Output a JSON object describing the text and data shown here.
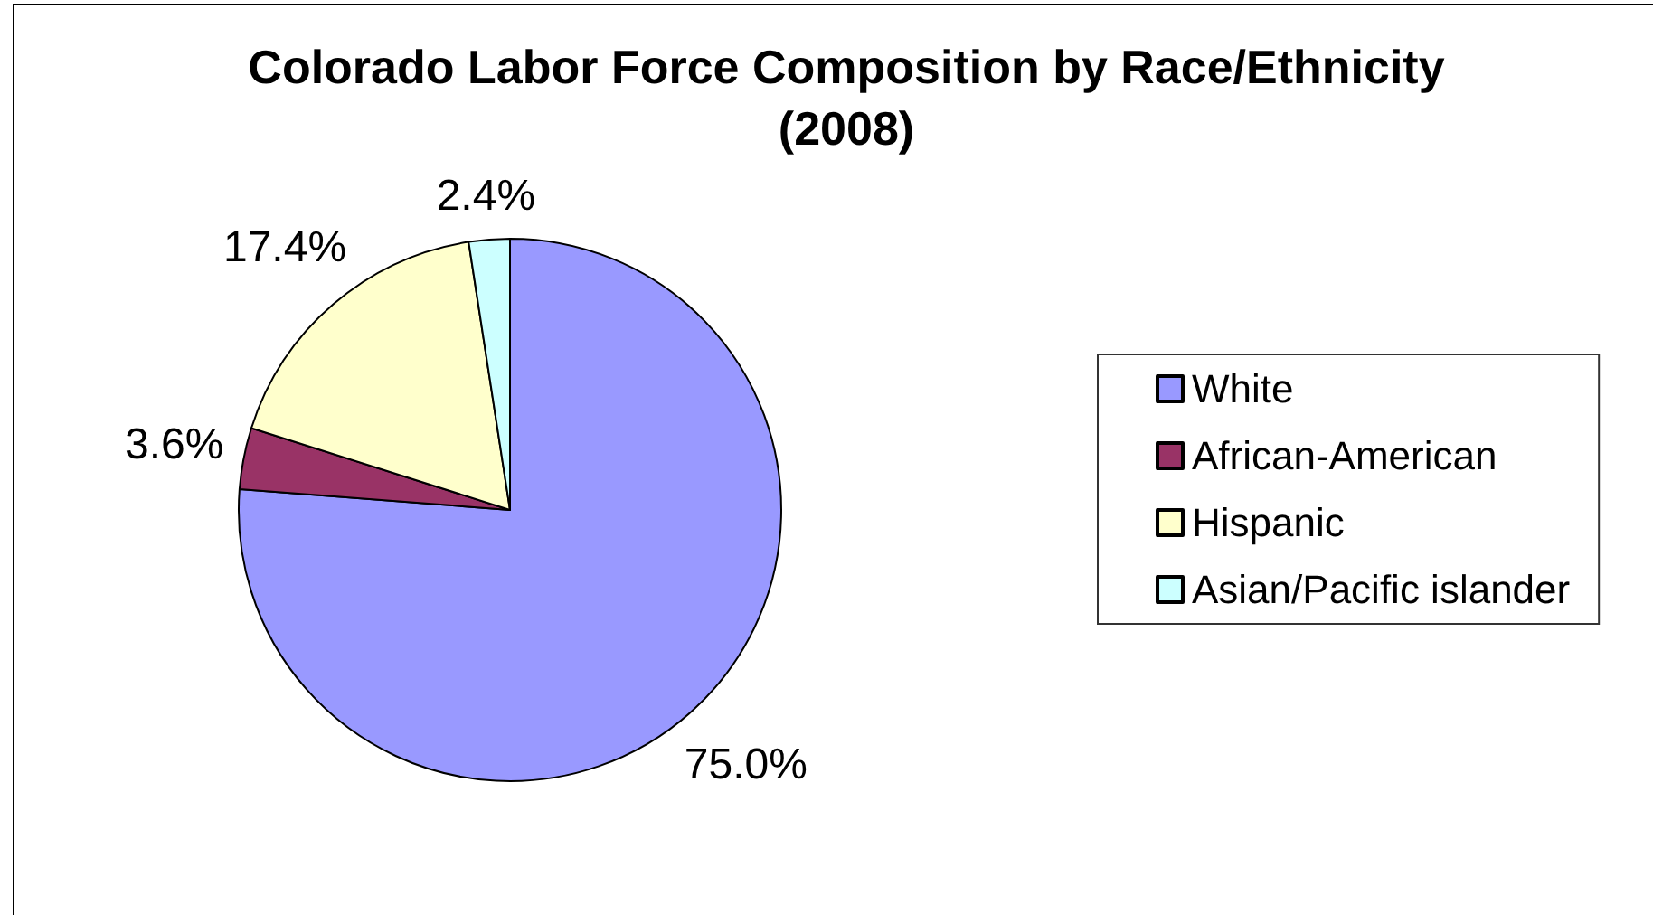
{
  "chart_data": {
    "type": "pie",
    "title": "Colorado Labor Force Composition by Race/Ethnicity (2008)",
    "categories": [
      "White",
      "African-American",
      "Hispanic",
      "Asian/Pacific islander"
    ],
    "values": [
      75.0,
      3.6,
      17.4,
      2.4
    ],
    "colors": [
      "#9999ff",
      "#993366",
      "#ffffcc",
      "#ccffff"
    ],
    "value_labels": [
      "75.0%",
      "3.6%",
      "17.4%",
      "2.4%"
    ],
    "legend": "right"
  }
}
